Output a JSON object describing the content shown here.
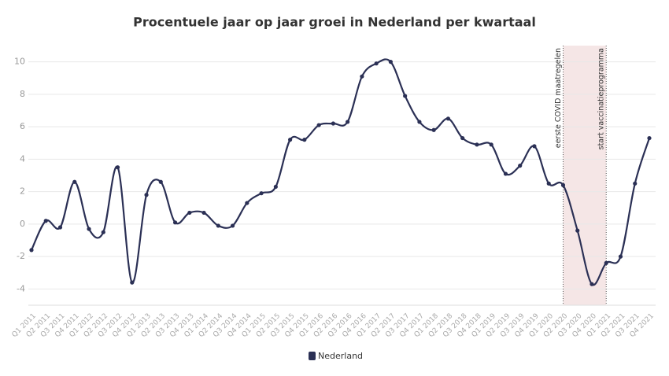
{
  "chart_data": {
    "type": "line",
    "title": "Procentuele jaar op jaar groei in Nederland per kwartaal",
    "categories": [
      "Q1 2011",
      "Q2 2011",
      "Q3 2011",
      "Q4 2011",
      "Q1 2012",
      "Q2 2012",
      "Q3 2012",
      "Q4 2012",
      "Q1 2013",
      "Q2 2013",
      "Q3 2013",
      "Q4 2013",
      "Q1 2014",
      "Q2 2014",
      "Q3 2014",
      "Q4 2014",
      "Q1 2015",
      "Q2 2015",
      "Q3 2015",
      "Q4 2015",
      "Q1 2016",
      "Q2 2016",
      "Q3 2016",
      "Q4 2016",
      "Q1 2017",
      "Q2 2017",
      "Q3 2017",
      "Q4 2017",
      "Q1 2018",
      "Q2 2018",
      "Q3 2018",
      "Q4 2018",
      "Q1 2019",
      "Q2 2019",
      "Q3 2019",
      "Q4 2019",
      "Q1 2020",
      "Q2 2020",
      "Q3 2020",
      "Q4 2020",
      "Q1 2021",
      "Q2 2021",
      "Q3 2021",
      "Q4 2021"
    ],
    "series": [
      {
        "name": "Nederland",
        "color": "#2b3055",
        "values": [
          -1.6,
          0.2,
          -0.2,
          2.6,
          -0.3,
          -0.5,
          3.5,
          -3.6,
          1.8,
          2.6,
          0.1,
          0.7,
          0.7,
          -0.1,
          -0.1,
          1.3,
          1.9,
          2.3,
          5.2,
          5.2,
          6.1,
          6.2,
          6.3,
          9.1,
          9.9,
          10.0,
          7.9,
          6.3,
          5.8,
          6.5,
          5.3,
          4.9,
          4.9,
          3.1,
          3.6,
          4.8,
          2.5,
          2.4,
          -0.4,
          -3.7,
          -2.4,
          -2.0,
          2.5,
          5.3
        ]
      }
    ],
    "ylim": [
      -5,
      11
    ],
    "yticks": [
      -4,
      -2,
      0,
      2,
      4,
      6,
      8,
      10
    ],
    "grid": true,
    "annotations": [
      {
        "text": "eerste COVID maatregelen",
        "x": "Q2 2020"
      },
      {
        "text": "start vaccinatieprogramma",
        "x": "Q1 2021"
      }
    ],
    "shaded_region": {
      "from": "Q2 2020",
      "to": "Q1 2021",
      "color": "#f5e6e6"
    },
    "legend": "bottom"
  }
}
